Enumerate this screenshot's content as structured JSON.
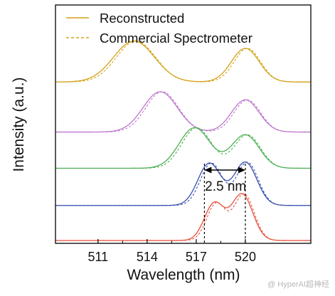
{
  "chart_data": {
    "type": "line",
    "xlabel": "Wavelength (nm)",
    "ylabel": "Intensity (a.u.)",
    "xlim": [
      508.4,
      524.0
    ],
    "ylim": [
      0,
      1
    ],
    "x_ticks": [
      511,
      514,
      517,
      520
    ],
    "minor_x_ticks": [
      512.5,
      515.5,
      518.5
    ],
    "grid": false,
    "legend_position": "top-left",
    "legend": [
      {
        "label": "Reconstructed",
        "style": "solid"
      },
      {
        "label": "Commercial Spectrometer",
        "style": "dashed"
      }
    ],
    "colors": {
      "trace_1": "#D4A017",
      "trace_2": "#BB77CC",
      "trace_3": "#4CAF50",
      "trace_4": "#3A4FB0",
      "trace_5": "#E8503C"
    },
    "traces": [
      {
        "baseline": 0.677,
        "peaks": [
          {
            "center": 513.2,
            "height": 0.172,
            "width": 1.25
          },
          {
            "center": 520.0,
            "height": 0.141,
            "width": 0.85
          }
        ]
      },
      {
        "baseline": 0.467,
        "peaks": [
          {
            "center": 514.8,
            "height": 0.169,
            "width": 1.05
          },
          {
            "center": 520.0,
            "height": 0.135,
            "width": 0.85
          }
        ]
      },
      {
        "baseline": 0.315,
        "peaks": [
          {
            "center": 516.9,
            "height": 0.17,
            "width": 0.95
          },
          {
            "center": 520.0,
            "height": 0.14,
            "width": 0.85
          }
        ]
      },
      {
        "baseline": 0.159,
        "peaks": [
          {
            "center": 517.8,
            "height": 0.177,
            "width": 0.7
          },
          {
            "center": 520.0,
            "height": 0.181,
            "width": 0.7
          }
        ]
      },
      {
        "baseline": 0.012,
        "peaks": [
          {
            "center": 518.1,
            "height": 0.155,
            "width": 0.6
          },
          {
            "center": 519.8,
            "height": 0.194,
            "width": 0.65
          }
        ]
      }
    ],
    "annotation": {
      "text": "2.5 nm",
      "from": 517.5,
      "to": 520.0
    }
  },
  "watermark": "@ HyperAI超神经"
}
